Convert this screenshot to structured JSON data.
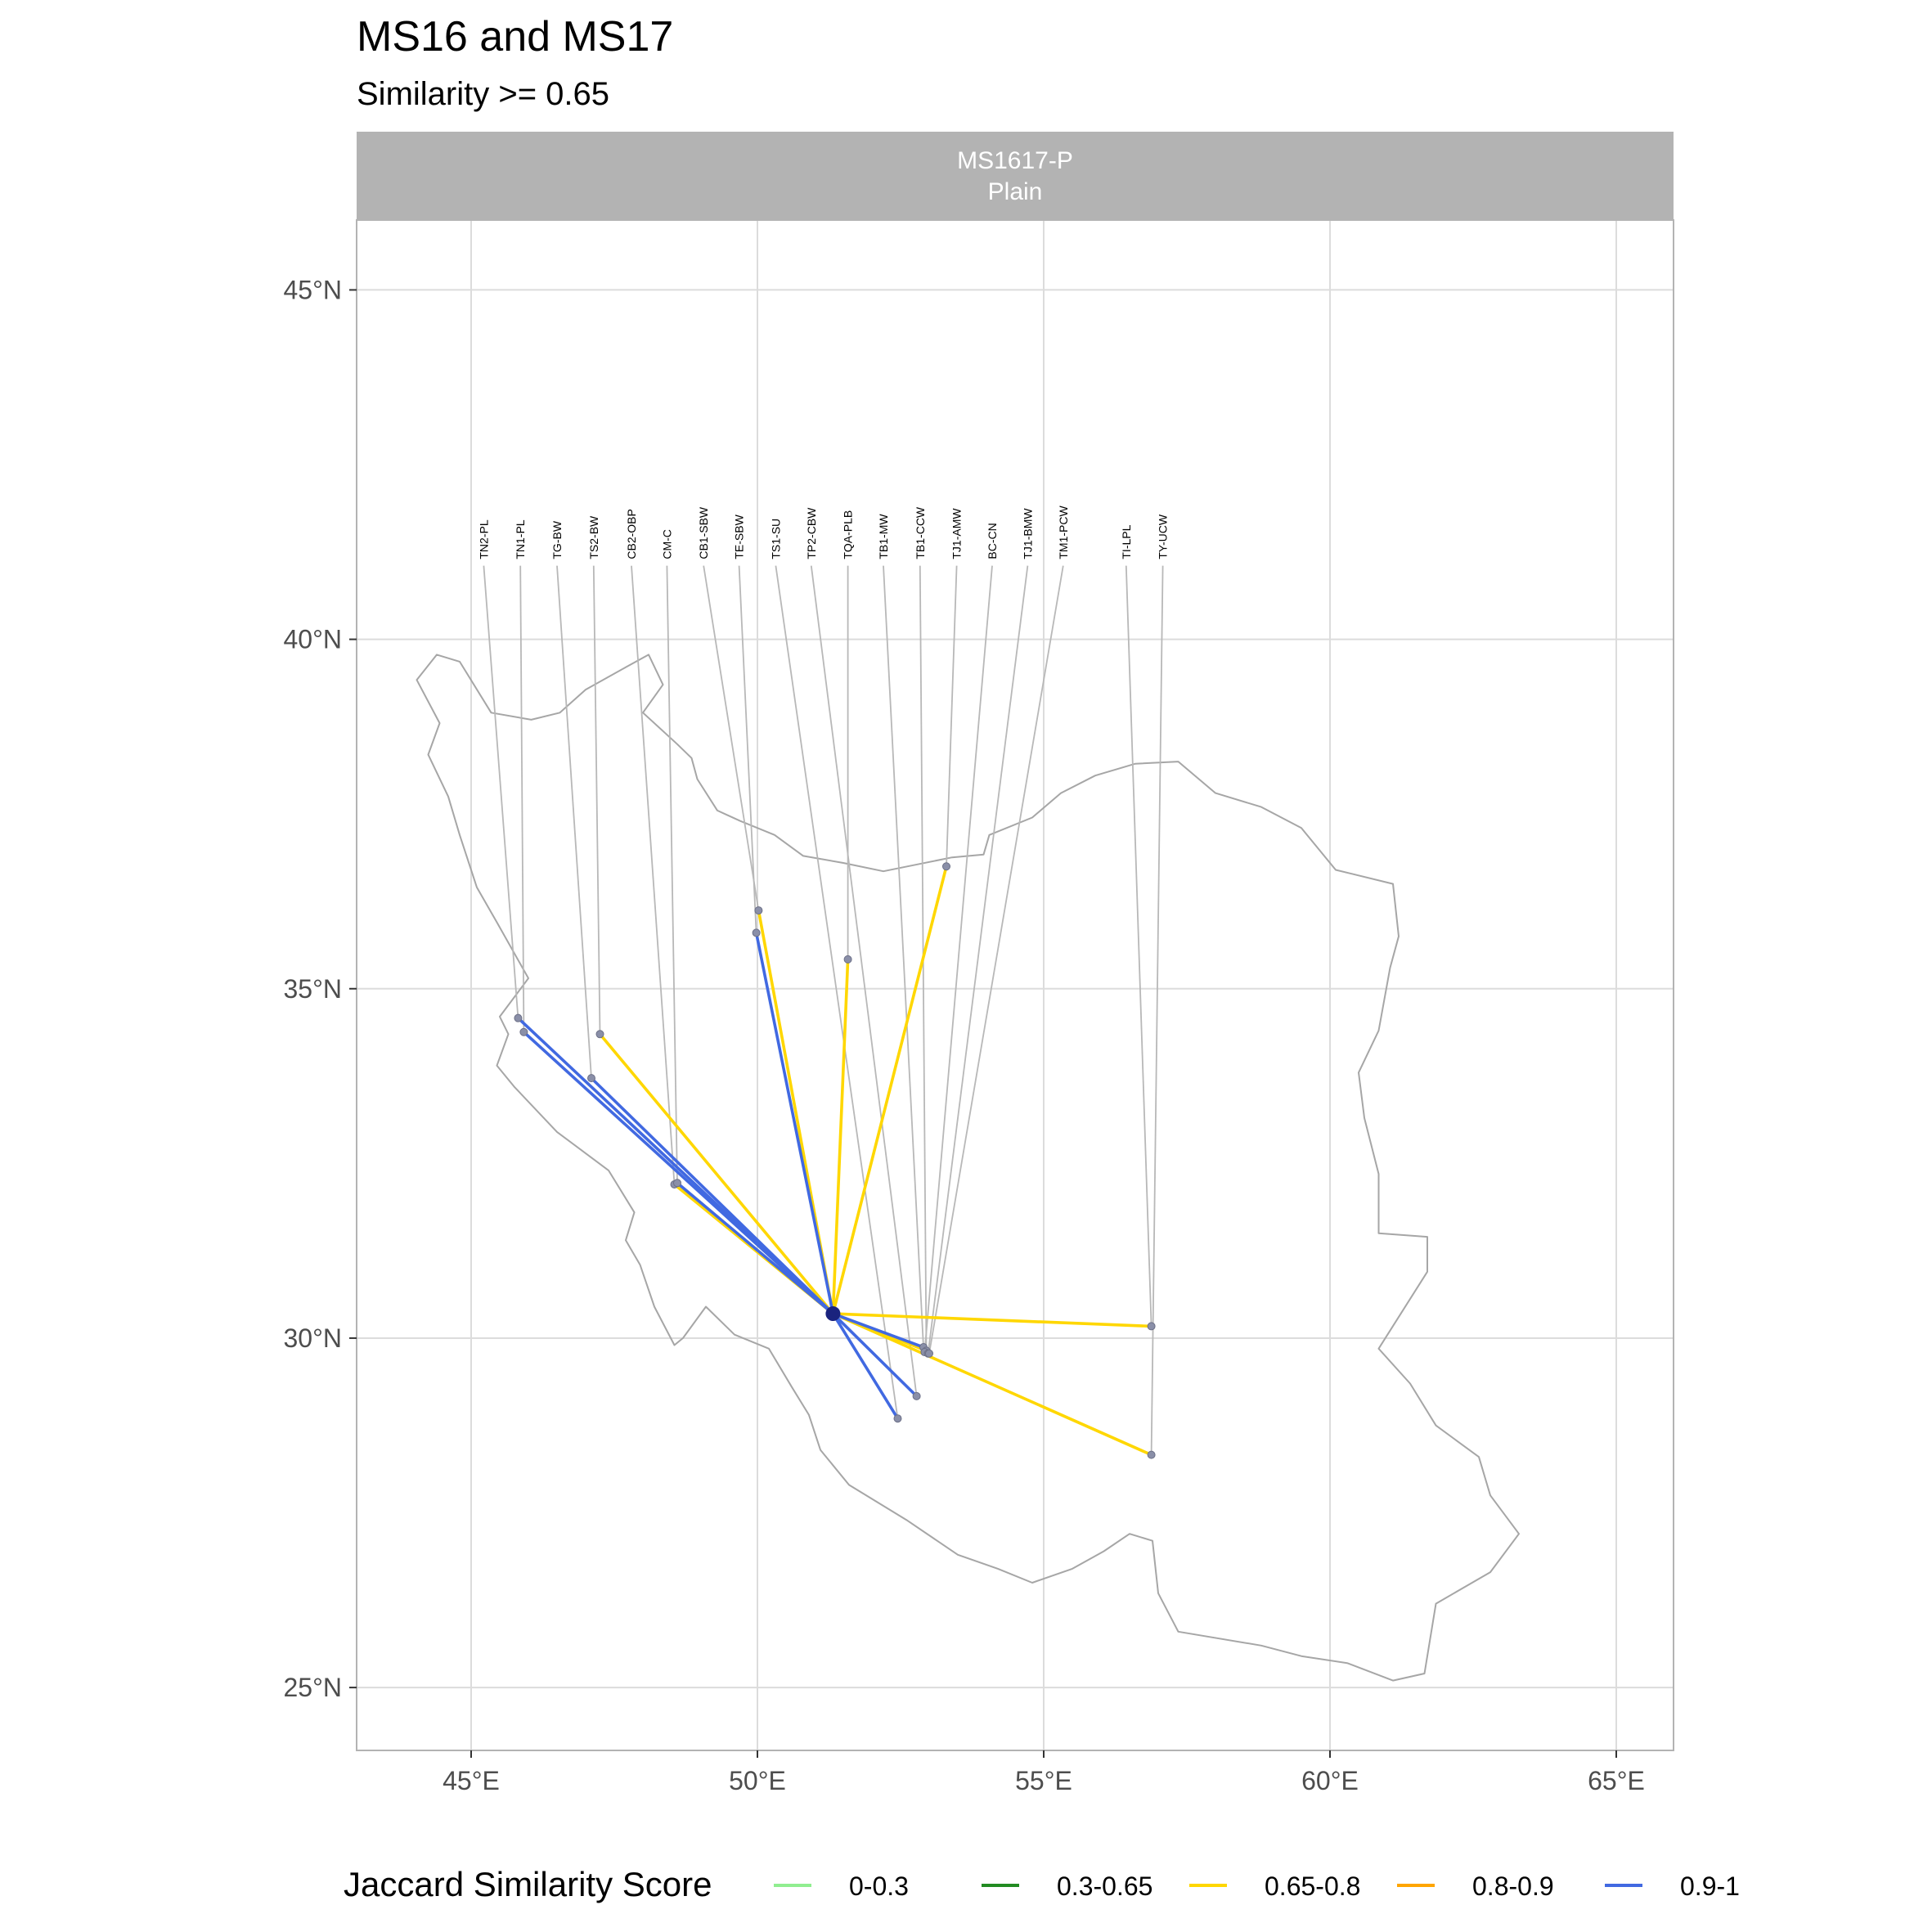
{
  "title": "MS16 and MS17",
  "subtitle": "Similarity >= 0.65",
  "facet": {
    "line1": "MS1617-P",
    "line2": "Plain"
  },
  "colors": {
    "panel_bg": "#ffffff",
    "grid": "#dcdcdc",
    "panel_border": "#b3b3b3",
    "strip_bg": "#b3b3b3",
    "country_outline": "#a6a6a6",
    "leader_line": "#b8b8b8",
    "site_point": "#8a8fa8",
    "hub_point": "#1a237e"
  },
  "legend": {
    "title": "Jaccard Similarity Score",
    "items": [
      {
        "label": "0-0.3",
        "color": "#90ee90"
      },
      {
        "label": "0.3-0.65",
        "color": "#228b22"
      },
      {
        "label": "0.65-0.8",
        "color": "#ffd700"
      },
      {
        "label": "0.8-0.9",
        "color": "#ffa500"
      },
      {
        "label": "0.9-1",
        "color": "#4169e1"
      }
    ]
  },
  "chart_data": {
    "type": "map",
    "x_axis": {
      "min": 43,
      "max": 66,
      "ticks": [
        45,
        50,
        55,
        60,
        65
      ],
      "tick_labels": [
        "45°E",
        "50°E",
        "55°E",
        "60°E",
        "65°E"
      ]
    },
    "y_axis": {
      "min": 24.1,
      "max": 46,
      "ticks": [
        25,
        30,
        35,
        40,
        45
      ],
      "tick_labels": [
        "25°N",
        "30°N",
        "35°N",
        "40°N",
        "45°N"
      ]
    },
    "grid": true,
    "hub": {
      "lon": 51.32,
      "lat": 30.35
    },
    "label_row_lat": 41.1,
    "sites": [
      {
        "code": "TN2-PL",
        "label_lon": 45.22,
        "lon": 45.82,
        "lat": 34.58
      },
      {
        "code": "TN1-PL",
        "label_lon": 45.86,
        "lon": 45.92,
        "lat": 34.38
      },
      {
        "code": "TG-BW",
        "label_lon": 46.5,
        "lon": 47.1,
        "lat": 33.72
      },
      {
        "code": "TS2-BW",
        "label_lon": 47.14,
        "lon": 47.25,
        "lat": 34.35
      },
      {
        "code": "CB2-OBP",
        "label_lon": 47.8,
        "lon": 48.55,
        "lat": 32.2
      },
      {
        "code": "CM-C",
        "label_lon": 48.42,
        "lon": 48.6,
        "lat": 32.22
      },
      {
        "code": "CB1-SBW",
        "label_lon": 49.06,
        "lon": 50.02,
        "lat": 36.12
      },
      {
        "code": "TE-SBW",
        "label_lon": 49.68,
        "lon": 49.98,
        "lat": 35.8
      },
      {
        "code": "TS1-SU",
        "label_lon": 50.32,
        "lon": 52.45,
        "lat": 28.85
      },
      {
        "code": "TP2-CBW",
        "label_lon": 50.94,
        "lon": 52.78,
        "lat": 29.17
      },
      {
        "code": "TQA-PLB",
        "label_lon": 51.58,
        "lon": 51.58,
        "lat": 35.42
      },
      {
        "code": "TB1-MW",
        "label_lon": 52.2,
        "lon": 52.9,
        "lat": 29.87
      },
      {
        "code": "TB1-CCW",
        "label_lon": 52.84,
        "lon": 52.95,
        "lat": 29.82
      },
      {
        "code": "TJ1-AMW",
        "label_lon": 53.48,
        "lon": 53.3,
        "lat": 36.75
      },
      {
        "code": "BC-CN",
        "label_lon": 54.1,
        "lon": 52.92,
        "lat": 29.8
      },
      {
        "code": "TJ1-BMW",
        "label_lon": 54.72,
        "lon": 52.98,
        "lat": 29.78
      },
      {
        "code": "TM1-PCW",
        "label_lon": 55.34,
        "lon": 53.0,
        "lat": 29.78
      },
      {
        "code": "TI-LPL",
        "label_lon": 56.44,
        "lon": 56.88,
        "lat": 30.17
      },
      {
        "code": "TY-UCW",
        "label_lon": 57.08,
        "lon": 56.88,
        "lat": 28.33
      }
    ],
    "connections": [
      {
        "site": "TN2-PL",
        "category": "0.9-1"
      },
      {
        "site": "TN1-PL",
        "category": "0.9-1"
      },
      {
        "site": "TG-BW",
        "category": "0.9-1"
      },
      {
        "site": "TS2-BW",
        "category": "0.65-0.8"
      },
      {
        "site": "CB2-OBP",
        "category": "0.65-0.8"
      },
      {
        "site": "CM-C",
        "category": "0.9-1"
      },
      {
        "site": "CB1-SBW",
        "category": "0.65-0.8"
      },
      {
        "site": "TE-SBW",
        "category": "0.9-1"
      },
      {
        "site": "TS1-SU",
        "category": "0.9-1"
      },
      {
        "site": "TP2-CBW",
        "category": "0.9-1"
      },
      {
        "site": "TQA-PLB",
        "category": "0.65-0.8"
      },
      {
        "site": "TB1-MW",
        "category": "0.9-1"
      },
      {
        "site": "TB1-CCW",
        "category": "0.65-0.8"
      },
      {
        "site": "TJ1-AMW",
        "category": "0.65-0.8"
      },
      {
        "site": "TI-LPL",
        "category": "0.65-0.8"
      },
      {
        "site": "TY-UCW",
        "category": "0.65-0.8"
      }
    ],
    "iran_outline": [
      [
        44.05,
        39.42
      ],
      [
        44.4,
        39.78
      ],
      [
        44.8,
        39.68
      ],
      [
        45.35,
        38.95
      ],
      [
        46.05,
        38.85
      ],
      [
        46.55,
        38.95
      ],
      [
        47.0,
        39.28
      ],
      [
        47.7,
        39.6
      ],
      [
        48.1,
        39.78
      ],
      [
        48.35,
        39.35
      ],
      [
        48.0,
        38.95
      ],
      [
        48.6,
        38.5
      ],
      [
        48.85,
        38.3
      ],
      [
        48.95,
        38.0
      ],
      [
        49.3,
        37.55
      ],
      [
        49.7,
        37.4
      ],
      [
        50.3,
        37.2
      ],
      [
        50.8,
        36.9
      ],
      [
        51.5,
        36.8
      ],
      [
        52.2,
        36.68
      ],
      [
        52.8,
        36.78
      ],
      [
        53.4,
        36.88
      ],
      [
        53.95,
        36.92
      ],
      [
        54.05,
        37.2
      ],
      [
        54.8,
        37.45
      ],
      [
        55.3,
        37.8
      ],
      [
        55.9,
        38.05
      ],
      [
        56.6,
        38.22
      ],
      [
        57.35,
        38.25
      ],
      [
        58.0,
        37.8
      ],
      [
        58.8,
        37.6
      ],
      [
        59.5,
        37.3
      ],
      [
        60.1,
        36.7
      ],
      [
        61.1,
        36.5
      ],
      [
        61.2,
        35.75
      ],
      [
        61.05,
        35.3
      ],
      [
        60.85,
        34.4
      ],
      [
        60.5,
        33.8
      ],
      [
        60.6,
        33.15
      ],
      [
        60.85,
        32.35
      ],
      [
        60.85,
        31.5
      ],
      [
        61.7,
        31.45
      ],
      [
        61.7,
        30.95
      ],
      [
        60.85,
        29.85
      ],
      [
        61.4,
        29.35
      ],
      [
        61.85,
        28.75
      ],
      [
        62.6,
        28.3
      ],
      [
        62.8,
        27.75
      ],
      [
        63.3,
        27.2
      ],
      [
        62.8,
        26.65
      ],
      [
        61.85,
        26.2
      ],
      [
        61.65,
        25.2
      ],
      [
        61.1,
        25.1
      ],
      [
        60.3,
        25.35
      ],
      [
        59.5,
        25.45
      ],
      [
        58.8,
        25.6
      ],
      [
        57.35,
        25.8
      ],
      [
        57.0,
        26.35
      ],
      [
        56.9,
        27.1
      ],
      [
        56.5,
        27.2
      ],
      [
        56.05,
        26.95
      ],
      [
        55.5,
        26.7
      ],
      [
        54.8,
        26.5
      ],
      [
        54.2,
        26.7
      ],
      [
        53.5,
        26.9
      ],
      [
        52.6,
        27.4
      ],
      [
        51.6,
        27.9
      ],
      [
        51.1,
        28.4
      ],
      [
        50.9,
        28.9
      ],
      [
        50.6,
        29.3
      ],
      [
        50.2,
        29.85
      ],
      [
        49.6,
        30.05
      ],
      [
        49.1,
        30.45
      ],
      [
        48.7,
        30.0
      ],
      [
        48.55,
        29.9
      ],
      [
        48.2,
        30.45
      ],
      [
        47.95,
        31.05
      ],
      [
        47.7,
        31.4
      ],
      [
        47.85,
        31.8
      ],
      [
        47.4,
        32.4
      ],
      [
        46.5,
        32.95
      ],
      [
        45.75,
        33.6
      ],
      [
        45.45,
        33.9
      ],
      [
        45.65,
        34.35
      ],
      [
        45.5,
        34.6
      ],
      [
        46.0,
        35.15
      ],
      [
        45.45,
        35.95
      ],
      [
        45.1,
        36.45
      ],
      [
        44.8,
        37.2
      ],
      [
        44.6,
        37.75
      ],
      [
        44.25,
        38.35
      ],
      [
        44.45,
        38.8
      ],
      [
        44.05,
        39.42
      ]
    ]
  }
}
